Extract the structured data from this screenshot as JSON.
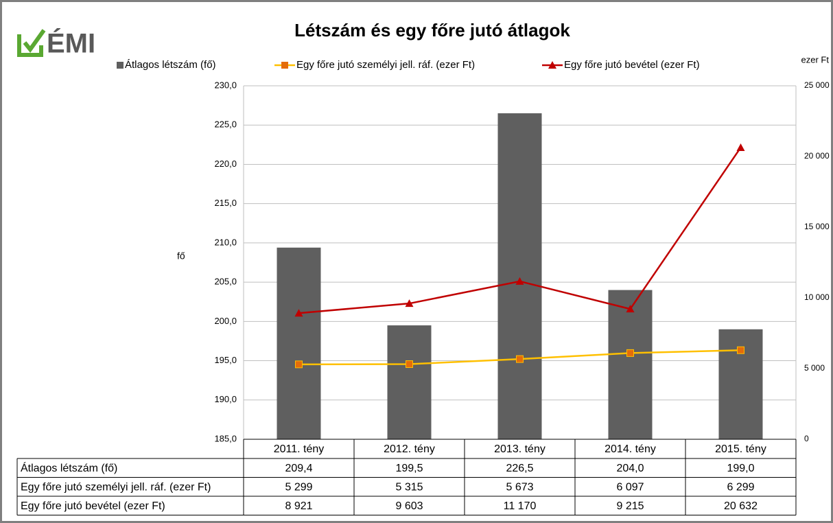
{
  "logo": "ÉMI",
  "chart_data": {
    "type": "bar",
    "title": "Létszám és egy főre jutó átlagok",
    "y_label": "fő",
    "y2_label": "ezer Ft",
    "categories": [
      "2011. tény",
      "2012. tény",
      "2013. tény",
      "2014. tény",
      "2015. tény"
    ],
    "series": [
      {
        "name": "Átlagos létszám (fő)",
        "type": "bar",
        "color": "#5f5f5f",
        "values": [
          209.4,
          199.5,
          226.5,
          204.0,
          199.0
        ],
        "value_labels": [
          "209,4",
          "199,5",
          "226,5",
          "204,0",
          "199,0"
        ]
      },
      {
        "name": "Egy főre jutó személyi jell. ráf. (ezer Ft)",
        "type": "line",
        "axis": "y2",
        "color": "#ffc000",
        "marker": "square",
        "marker_color": "#e46c0a",
        "values": [
          5299,
          5315,
          5673,
          6097,
          6299
        ],
        "value_labels": [
          "5 299",
          "5 315",
          "5 673",
          "6 097",
          "6 299"
        ]
      },
      {
        "name": "Egy főre jutó bevétel (ezer Ft)",
        "type": "line",
        "axis": "y2",
        "color": "#c00000",
        "marker": "triangle",
        "marker_color": "#c00000",
        "values": [
          8921,
          9603,
          11170,
          9215,
          20632
        ],
        "value_labels": [
          "8 921",
          "9 603",
          "11 170",
          "9 215",
          "20 632"
        ]
      }
    ],
    "ylim": [
      185,
      230
    ],
    "yticks": [
      {
        "value": 185,
        "label": "185,0"
      },
      {
        "value": 190,
        "label": "190,0"
      },
      {
        "value": 195,
        "label": "195,0"
      },
      {
        "value": 200,
        "label": "200,0"
      },
      {
        "value": 205,
        "label": "205,0"
      },
      {
        "value": 210,
        "label": "210,0"
      },
      {
        "value": 215,
        "label": "215,0"
      },
      {
        "value": 220,
        "label": "220,0"
      },
      {
        "value": 225,
        "label": "225,0"
      },
      {
        "value": 230,
        "label": "230,0"
      }
    ],
    "y2lim": [
      0,
      25000
    ],
    "y2ticks": [
      0,
      {
        "value": 5000,
        "label": "5 000"
      },
      {
        "value": 10000,
        "label": "10 000"
      },
      {
        "value": 15000,
        "label": "15 000"
      },
      {
        "value": 20000,
        "label": "20 000"
      },
      {
        "value": 25000,
        "label": "25 000"
      }
    ],
    "grid": true,
    "legend": "top"
  }
}
